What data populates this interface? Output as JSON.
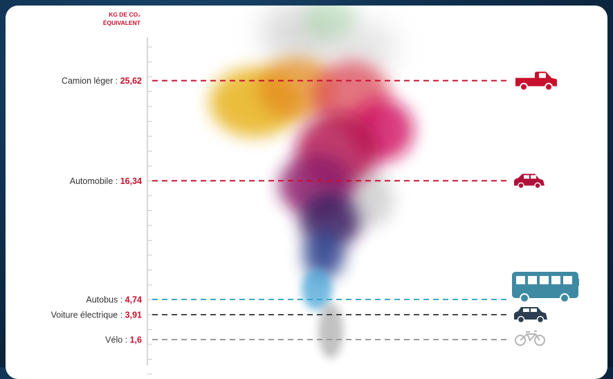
{
  "chart_data": {
    "type": "bar",
    "unit_label_line1": "KG DE CO₂",
    "unit_label_line2": "ÉQUIVALENT",
    "categories": [
      "Camion léger",
      "Automobile",
      "Autobus",
      "Voiture électrique",
      "Vélo"
    ],
    "values": [
      25.62,
      16.34,
      4.74,
      3.91,
      1.6
    ],
    "value_labels": [
      "25,62",
      "16,34",
      "4,74",
      "3,91",
      "1,6"
    ],
    "icons": [
      "pickup-truck-icon",
      "car-icon",
      "bus-icon",
      "electric-car-icon",
      "bicycle-icon"
    ],
    "line_colors": [
      "#c8102e",
      "#c8102e",
      "#3aa9c9",
      "#444444",
      "#9a9a9a"
    ],
    "icon_colors": [
      "#c8102e",
      "#b0103a",
      "#3f8aa3",
      "#2c3e50",
      "#b5b5b5"
    ],
    "ylim": [
      0,
      29
    ],
    "grid": false,
    "legend": "none"
  }
}
